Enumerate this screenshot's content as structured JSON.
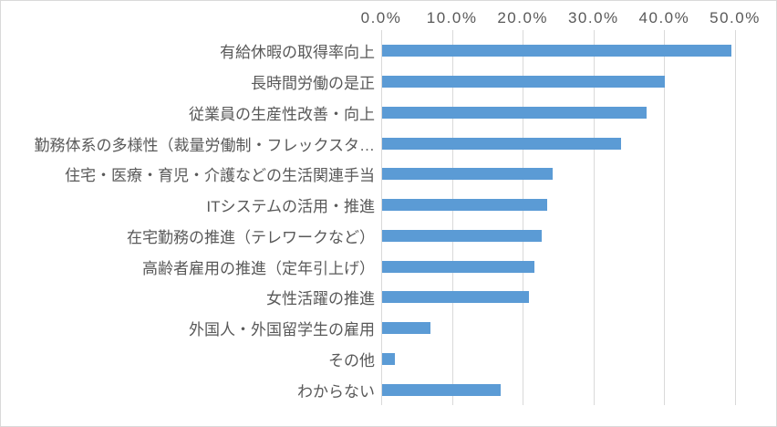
{
  "chart_data": {
    "type": "bar",
    "orientation": "horizontal",
    "title": "",
    "xlabel": "",
    "ylabel": "",
    "axis_position": "top",
    "xlim": [
      0,
      50
    ],
    "x_tick_values": [
      0,
      10,
      20,
      30,
      40,
      50
    ],
    "x_tick_labels": [
      "0.0%",
      "10.0%",
      "20.0%",
      "30.0%",
      "40.0%",
      "50.0%"
    ],
    "grid": true,
    "legend": false,
    "categories": [
      "有給休暇の取得率向上",
      "長時間労働の是正",
      "従業員の生産性改善・向上",
      "勤務体系の多様性（裁量労働制・フレックスタ…",
      "住宅・医療・育児・介護などの生活関連手当",
      "ITシステムの活用・推進",
      "在宅勤務の推進（テレワークなど）",
      "高齢者雇用の推進（定年引上げ）",
      "女性活躍の推進",
      "外国人・外国留学生の雇用",
      "その他",
      "わからない"
    ],
    "values": [
      49.4,
      40.0,
      37.4,
      33.7,
      24.1,
      23.3,
      22.5,
      21.5,
      20.7,
      6.8,
      1.8,
      16.7
    ],
    "unit": "%",
    "colors": {
      "bar": "#5b9bd5",
      "gridline": "#d9d9d9",
      "text": "#595959",
      "chart_border": "#d9d9d9",
      "background": "#ffffff"
    }
  }
}
